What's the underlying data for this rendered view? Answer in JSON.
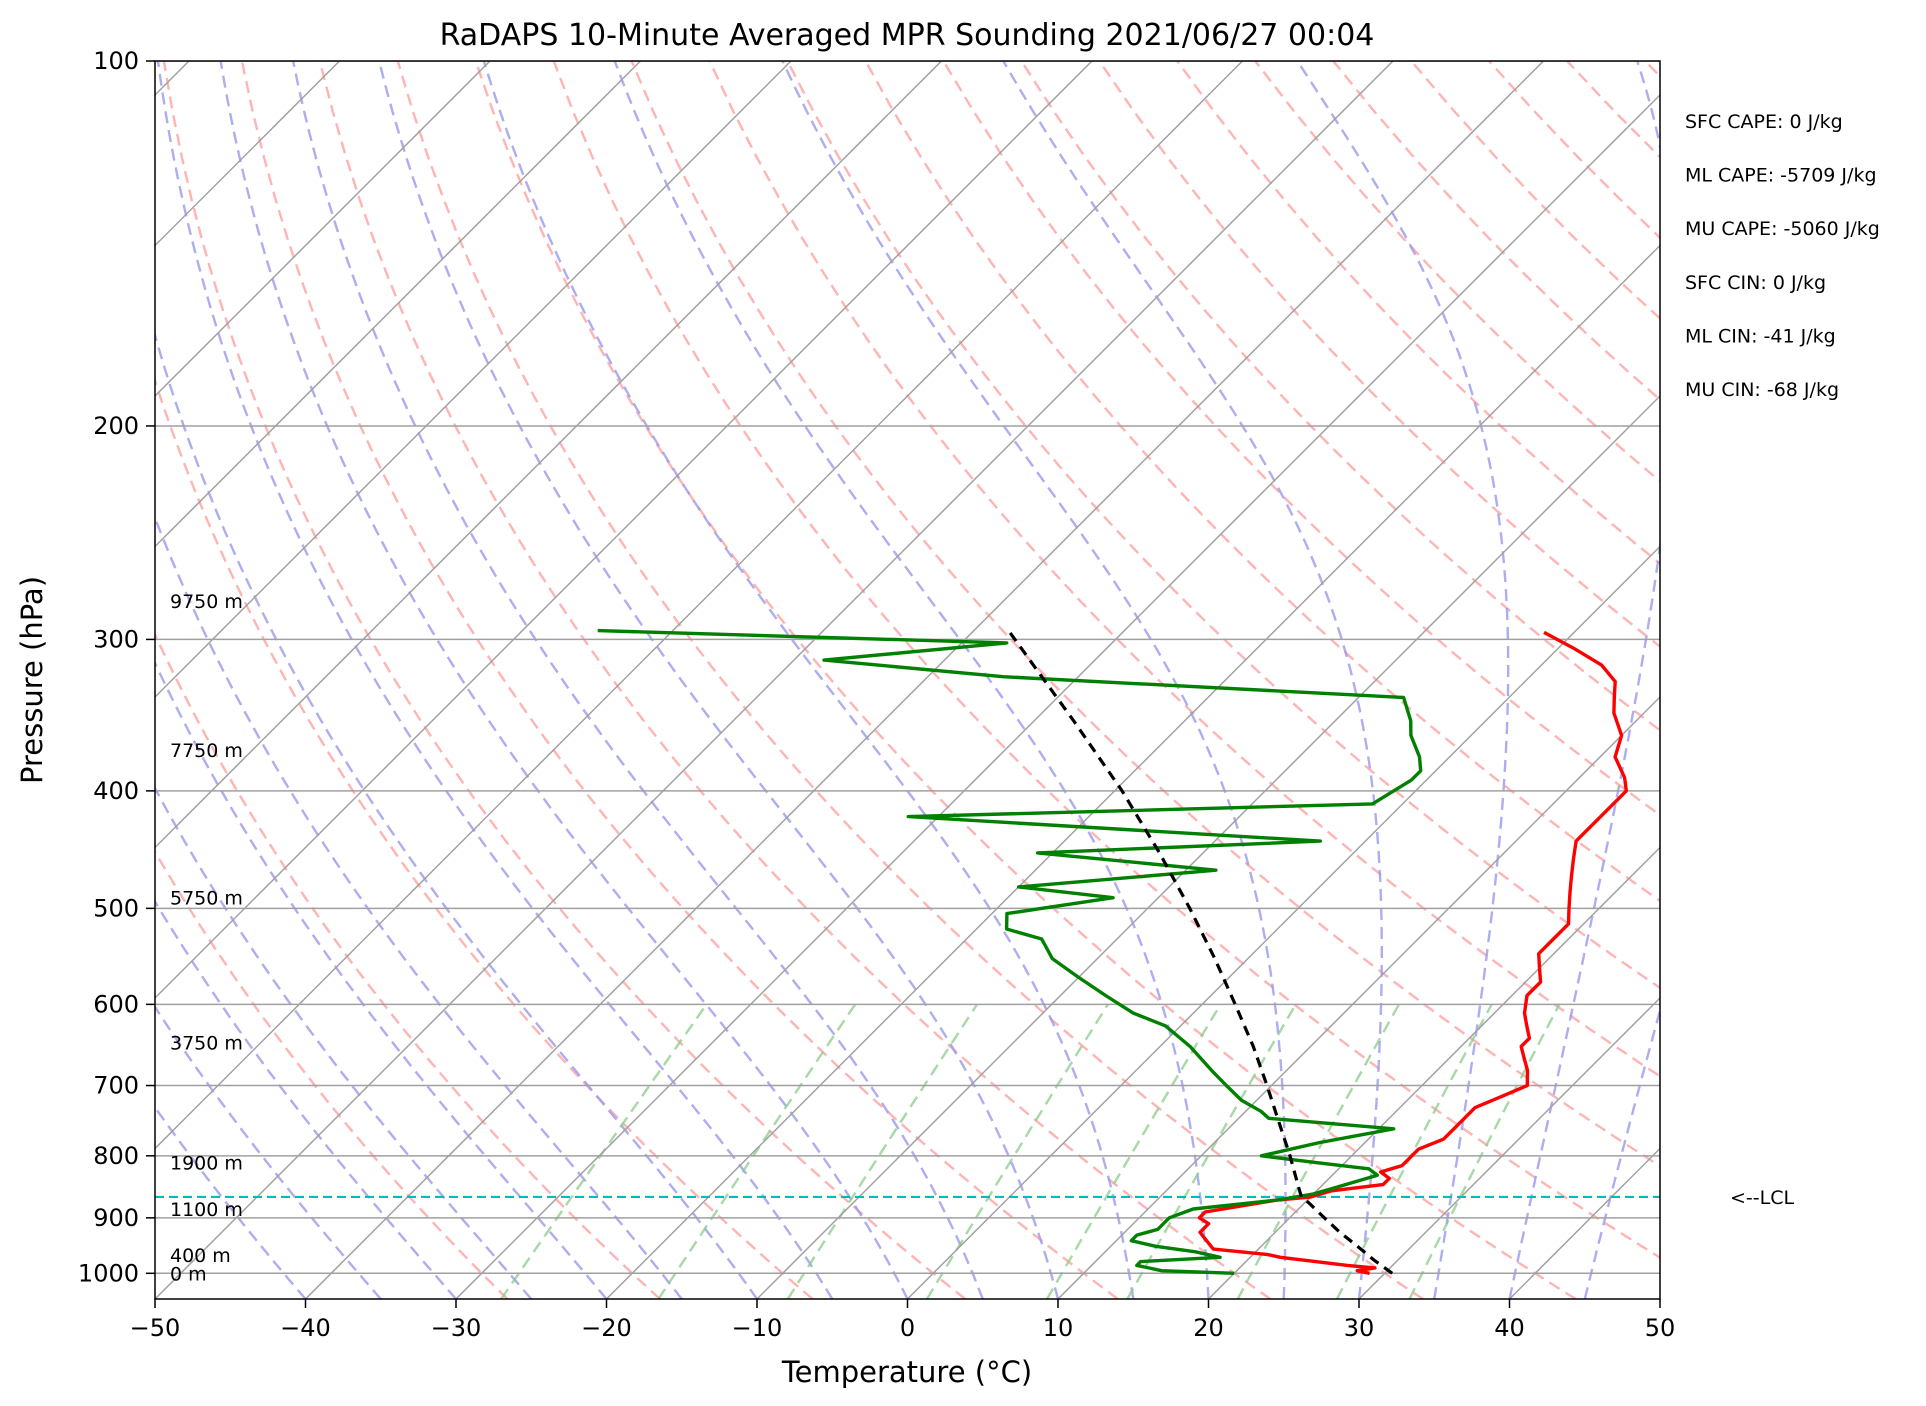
{
  "chart_data": {
    "type": "line",
    "title": "RaDAPS 10-Minute Averaged MPR Sounding 2021/06/27 00:04",
    "xlabel": "Temperature (°C)",
    "ylabel": "Pressure (hPa)",
    "xlim": [
      -50,
      50
    ],
    "ylim": [
      1050,
      100
    ],
    "y_scale": "log",
    "skew": true,
    "x_ticks": [
      -50,
      -40,
      -30,
      -20,
      -10,
      0,
      10,
      20,
      30,
      40,
      50
    ],
    "x_tick_labels": [
      "−50",
      "−40",
      "−30",
      "−20",
      "−10",
      "0",
      "10",
      "20",
      "30",
      "40",
      "50"
    ],
    "y_ticks": [
      100,
      200,
      300,
      400,
      500,
      600,
      700,
      800,
      900,
      1000
    ],
    "y_tick_labels": [
      "100",
      "200",
      "300",
      "400",
      "500",
      "600",
      "700",
      "800",
      "900",
      "1000"
    ],
    "grid": true,
    "series": [
      {
        "color": "#ff0000",
        "points": [
          [
            1000,
            29
          ],
          [
            995,
            28
          ],
          [
            990,
            29
          ],
          [
            985,
            27
          ],
          [
            970,
            22
          ],
          [
            965,
            21
          ],
          [
            955,
            17
          ],
          [
            940,
            16
          ],
          [
            925,
            15
          ],
          [
            910,
            15
          ],
          [
            900,
            14
          ],
          [
            890,
            14
          ],
          [
            880,
            16
          ],
          [
            870,
            18
          ],
          [
            865,
            20
          ],
          [
            855,
            21
          ],
          [
            845,
            24
          ],
          [
            835,
            24
          ],
          [
            825,
            23
          ],
          [
            815,
            24
          ],
          [
            800,
            24
          ],
          [
            790,
            24
          ],
          [
            775,
            25
          ],
          [
            760,
            25
          ],
          [
            745,
            25
          ],
          [
            730,
            25
          ],
          [
            715,
            26
          ],
          [
            700,
            27
          ],
          [
            680,
            26
          ],
          [
            665,
            25
          ],
          [
            650,
            24
          ],
          [
            640,
            24
          ],
          [
            625,
            23
          ],
          [
            610,
            22
          ],
          [
            590,
            21
          ],
          [
            575,
            21
          ],
          [
            560,
            20
          ],
          [
            545,
            19
          ],
          [
            530,
            19
          ],
          [
            515,
            19
          ],
          [
            500,
            18
          ],
          [
            485,
            17
          ],
          [
            470,
            16
          ],
          [
            455,
            15
          ],
          [
            440,
            14
          ],
          [
            425,
            14
          ],
          [
            410,
            14
          ],
          [
            400,
            14
          ],
          [
            390,
            13
          ],
          [
            375,
            11
          ],
          [
            360,
            10
          ],
          [
            345,
            8
          ],
          [
            335,
            7
          ],
          [
            325,
            6
          ],
          [
            315,
            4
          ],
          [
            305,
            1
          ],
          [
            296,
            -2
          ]
        ]
      },
      {
        "color": "#008000",
        "points": [
          [
            1000,
            20
          ],
          [
            995,
            15
          ],
          [
            990,
            14
          ],
          [
            985,
            13
          ],
          [
            978,
            13
          ],
          [
            970,
            18
          ],
          [
            960,
            16
          ],
          [
            950,
            13
          ],
          [
            940,
            11
          ],
          [
            930,
            11
          ],
          [
            920,
            12
          ],
          [
            910,
            12
          ],
          [
            900,
            12
          ],
          [
            885,
            13
          ],
          [
            870,
            18
          ],
          [
            860,
            20
          ],
          [
            850,
            21
          ],
          [
            840,
            22
          ],
          [
            830,
            23
          ],
          [
            820,
            22
          ],
          [
            810,
            18
          ],
          [
            800,
            14
          ],
          [
            780,
            17
          ],
          [
            760,
            21
          ],
          [
            745,
            12
          ],
          [
            735,
            11
          ],
          [
            720,
            9
          ],
          [
            700,
            7
          ],
          [
            680,
            5
          ],
          [
            650,
            2
          ],
          [
            625,
            -1
          ],
          [
            610,
            -4
          ],
          [
            590,
            -7
          ],
          [
            570,
            -10
          ],
          [
            550,
            -13
          ],
          [
            530,
            -15
          ],
          [
            520,
            -18
          ],
          [
            505,
            -19
          ],
          [
            490,
            -13
          ],
          [
            480,
            -20
          ],
          [
            465,
            -8
          ],
          [
            450,
            -21
          ],
          [
            440,
            -3
          ],
          [
            420,
            -32
          ],
          [
            410,
            -2
          ],
          [
            392,
            -1
          ],
          [
            385,
            -1
          ],
          [
            375,
            -2
          ],
          [
            360,
            -4
          ],
          [
            350,
            -5
          ],
          [
            335,
            -7
          ],
          [
            322,
            -35
          ],
          [
            312,
            -48
          ],
          [
            302,
            -37
          ],
          [
            295,
            -65
          ]
        ]
      },
      {
        "color": "#000000",
        "dash": "dashed",
        "points": [
          [
            1000,
            30.5
          ],
          [
            975,
            28.4
          ],
          [
            950,
            26.4
          ],
          [
            925,
            24.3
          ],
          [
            900,
            22.3
          ],
          [
            875,
            20.3
          ],
          [
            865,
            19.4
          ],
          [
            850,
            18.6
          ],
          [
            800,
            15.9
          ],
          [
            750,
            12.9
          ],
          [
            700,
            9.7
          ],
          [
            650,
            6.2
          ],
          [
            600,
            2.2
          ],
          [
            550,
            -2.2
          ],
          [
            500,
            -7.2
          ],
          [
            450,
            -12.9
          ],
          [
            400,
            -19.5
          ],
          [
            350,
            -27.4
          ],
          [
            296,
            -37.5
          ]
        ]
      }
    ],
    "lcl_pressure": 865,
    "lcl_label": "<--LCL",
    "height_labels": [
      {
        "pressure": 1000,
        "text": "0 m"
      },
      {
        "pressure": 966,
        "text": "400 m"
      },
      {
        "pressure": 885,
        "text": "1100 m"
      },
      {
        "pressure": 810,
        "text": "1900 m"
      },
      {
        "pressure": 645,
        "text": "3750 m"
      },
      {
        "pressure": 490,
        "text": "5750 m"
      },
      {
        "pressure": 370,
        "text": "7750 m"
      },
      {
        "pressure": 279,
        "text": "9750 m"
      }
    ],
    "annotations": [
      "SFC CAPE: 0 J/kg",
      "ML CAPE: -5709 J/kg",
      "MU CAPE: -5060 J/kg",
      "SFC CIN: 0 J/kg",
      "ML CIN: -41 J/kg",
      "MU CIN: -68 J/kg"
    ]
  },
  "colors": {
    "isotherm": "#a0a0a0",
    "dry_adiabat": "#ff9b9b",
    "moist_adiabat": "#9999ee",
    "mixing_ratio": "#88cc88",
    "lcl": "#00bbbb"
  }
}
